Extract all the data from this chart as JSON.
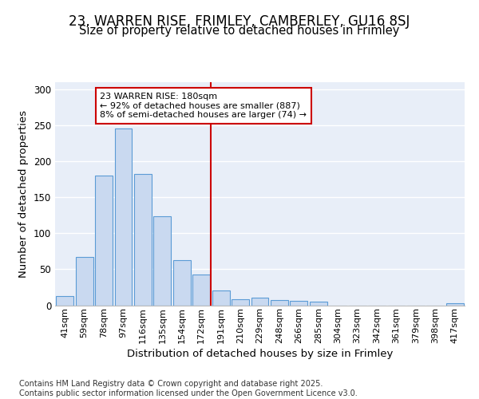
{
  "title_line1": "23, WARREN RISE, FRIMLEY, CAMBERLEY, GU16 8SJ",
  "title_line2": "Size of property relative to detached houses in Frimley",
  "xlabel": "Distribution of detached houses by size in Frimley",
  "ylabel": "Number of detached properties",
  "categories": [
    "41sqm",
    "59sqm",
    "78sqm",
    "97sqm",
    "116sqm",
    "135sqm",
    "154sqm",
    "172sqm",
    "191sqm",
    "210sqm",
    "229sqm",
    "248sqm",
    "266sqm",
    "285sqm",
    "304sqm",
    "323sqm",
    "342sqm",
    "361sqm",
    "379sqm",
    "398sqm",
    "417sqm"
  ],
  "values": [
    13,
    67,
    180,
    245,
    182,
    124,
    63,
    43,
    21,
    8,
    10,
    7,
    6,
    5,
    0,
    0,
    0,
    0,
    0,
    0,
    3
  ],
  "bar_color": "#c9d9f0",
  "bar_edge_color": "#5b9bd5",
  "vline_x_idx": 7.5,
  "vline_color": "#cc0000",
  "annotation_text": "23 WARREN RISE: 180sqm\n← 92% of detached houses are smaller (887)\n8% of semi-detached houses are larger (74) →",
  "annotation_box_color": "#ffffff",
  "annotation_box_edge": "#cc0000",
  "ylim": [
    0,
    310
  ],
  "yticks": [
    0,
    50,
    100,
    150,
    200,
    250,
    300
  ],
  "plot_bg_color": "#e8eef8",
  "fig_bg_color": "#ffffff",
  "grid_color": "#ffffff",
  "footer_text": "Contains HM Land Registry data © Crown copyright and database right 2025.\nContains public sector information licensed under the Open Government Licence v3.0.",
  "title_fontsize": 12,
  "subtitle_fontsize": 10.5,
  "axis_label_fontsize": 9.5,
  "tick_fontsize": 8,
  "annotation_fontsize": 8,
  "footer_fontsize": 7
}
